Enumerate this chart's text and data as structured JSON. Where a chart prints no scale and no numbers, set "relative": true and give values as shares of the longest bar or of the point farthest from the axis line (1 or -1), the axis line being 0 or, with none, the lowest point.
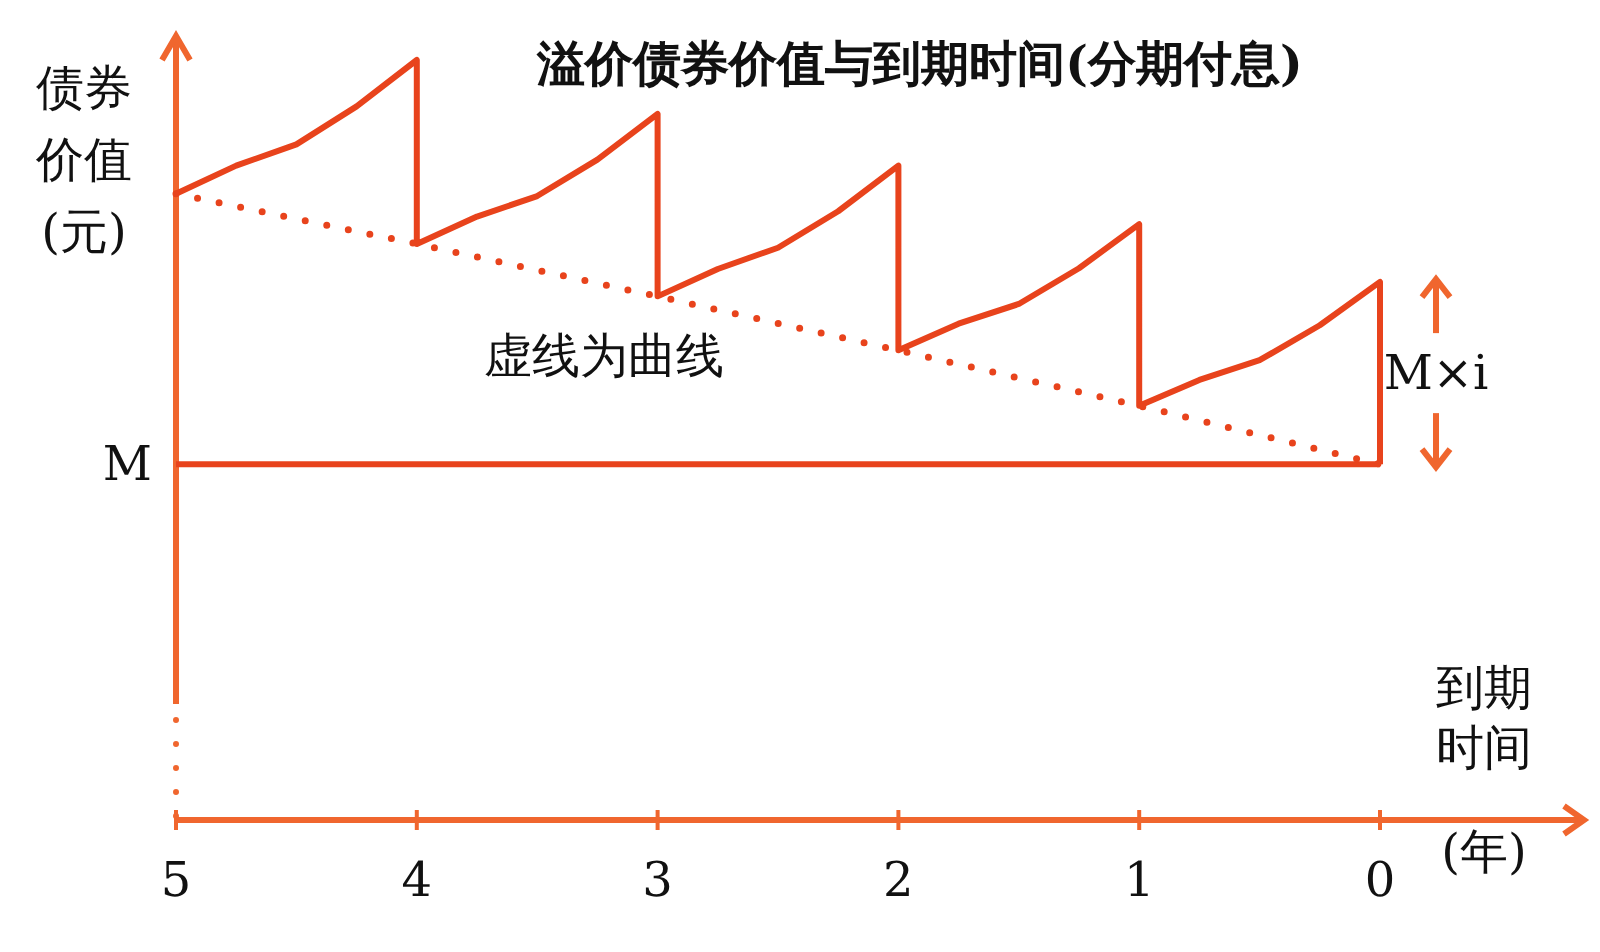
{
  "chart_data": {
    "type": "line",
    "title": "溢价债券价值与到期时间(分期付息)",
    "xlabel": "到期时间(年)",
    "ylabel": "债券价值(元)",
    "relative": true,
    "xlim": [
      5,
      0
    ],
    "xticks": [
      5,
      4,
      3,
      2,
      1,
      0
    ],
    "series": [
      {
        "color": "#e8431c",
        "x": [
          5,
          4.75,
          4.5,
          4.25,
          4,
          4,
          3.75,
          3.5,
          3.25,
          3,
          3,
          2.75,
          2.5,
          2.25,
          2,
          2,
          1.75,
          1.5,
          1.25,
          1,
          1,
          0.75,
          0.5,
          0.25,
          0,
          0
        ],
        "values": [
          0.824,
          0.861,
          0.889,
          0.939,
          1,
          0.758,
          0.794,
          0.821,
          0.869,
          0.929,
          0.689,
          0.725,
          0.753,
          0.801,
          0.861,
          0.618,
          0.653,
          0.679,
          0.726,
          0.784,
          0.545,
          0.579,
          0.605,
          0.651,
          0.708,
          0.468
        ]
      },
      {
        "color": "#e8431c",
        "line_style": "dotted",
        "x": [
          5,
          4,
          3,
          2,
          1,
          0
        ],
        "values": [
          0.824,
          0.758,
          0.689,
          0.618,
          0.545,
          0.468
        ]
      }
    ],
    "ref_lines": [
      {
        "axis": "y",
        "value": 0.468,
        "label": "M",
        "color": "#e8431c"
      }
    ],
    "annotations": [
      "虚线为曲线",
      {
        "text": "M×i",
        "x": 0,
        "y": 0.588
      }
    ]
  }
}
